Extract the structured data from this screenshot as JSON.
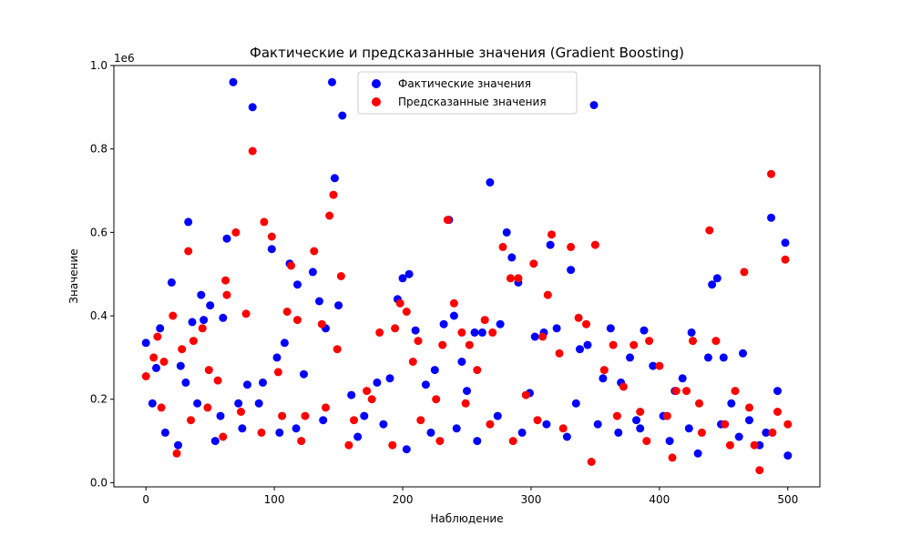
{
  "chart_data": {
    "type": "scatter",
    "title": "Фактические и предсказанные значения (Gradient Boosting)",
    "xlabel": "Наблюдение",
    "ylabel": "Значение",
    "y_offset_label": "1e6",
    "xlim": [
      -25,
      525
    ],
    "ylim": [
      -0.01,
      1.0
    ],
    "x_ticks": [
      0,
      100,
      200,
      300,
      400,
      500
    ],
    "y_ticks": [
      0.0,
      0.2,
      0.4,
      0.6,
      0.8,
      1.0
    ],
    "x_tick_labels": [
      "0",
      "100",
      "200",
      "300",
      "400",
      "500"
    ],
    "y_tick_labels": [
      "0.0",
      "0.2",
      "0.4",
      "0.6",
      "0.8",
      "1.0"
    ],
    "legend_position": "top-center",
    "series": [
      {
        "name": "Фактические значения",
        "color": "#0000ff",
        "points": [
          [
            0,
            0.335
          ],
          [
            5,
            0.19
          ],
          [
            8,
            0.275
          ],
          [
            11,
            0.37
          ],
          [
            20,
            0.48
          ],
          [
            27,
            0.28
          ],
          [
            31,
            0.24
          ],
          [
            33,
            0.625
          ],
          [
            36,
            0.385
          ],
          [
            43,
            0.45
          ],
          [
            45,
            0.39
          ],
          [
            50,
            0.425
          ],
          [
            54,
            0.1
          ],
          [
            60,
            0.395
          ],
          [
            63,
            0.585
          ],
          [
            68,
            0.96
          ],
          [
            72,
            0.19
          ],
          [
            79,
            0.235
          ],
          [
            83,
            0.9
          ],
          [
            91,
            0.24
          ],
          [
            98,
            0.56
          ],
          [
            102,
            0.3
          ],
          [
            108,
            0.335
          ],
          [
            112,
            0.525
          ],
          [
            118,
            0.475
          ],
          [
            123,
            0.26
          ],
          [
            130,
            0.505
          ],
          [
            135,
            0.435
          ],
          [
            140,
            0.37
          ],
          [
            145,
            0.96
          ],
          [
            147,
            0.73
          ],
          [
            150,
            0.425
          ],
          [
            153,
            0.88
          ],
          [
            160,
            0.21
          ],
          [
            170,
            0.16
          ],
          [
            180,
            0.24
          ],
          [
            190,
            0.25
          ],
          [
            196,
            0.44
          ],
          [
            200,
            0.49
          ],
          [
            205,
            0.5
          ],
          [
            210,
            0.365
          ],
          [
            218,
            0.235
          ],
          [
            225,
            0.27
          ],
          [
            232,
            0.38
          ],
          [
            236,
            0.63
          ],
          [
            240,
            0.4
          ],
          [
            246,
            0.29
          ],
          [
            250,
            0.22
          ],
          [
            256,
            0.36
          ],
          [
            262,
            0.36
          ],
          [
            268,
            0.72
          ],
          [
            276,
            0.38
          ],
          [
            281,
            0.6
          ],
          [
            285,
            0.54
          ],
          [
            290,
            0.48
          ],
          [
            299,
            0.215
          ],
          [
            303,
            0.35
          ],
          [
            310,
            0.36
          ],
          [
            315,
            0.57
          ],
          [
            320,
            0.37
          ],
          [
            328,
            0.11
          ],
          [
            331,
            0.51
          ],
          [
            338,
            0.32
          ],
          [
            344,
            0.33
          ],
          [
            349,
            0.905
          ],
          [
            356,
            0.25
          ],
          [
            362,
            0.37
          ],
          [
            370,
            0.24
          ],
          [
            377,
            0.3
          ],
          [
            382,
            0.15
          ],
          [
            388,
            0.365
          ],
          [
            395,
            0.28
          ],
          [
            403,
            0.16
          ],
          [
            412,
            0.22
          ],
          [
            418,
            0.25
          ],
          [
            425,
            0.36
          ],
          [
            430,
            0.07
          ],
          [
            438,
            0.3
          ],
          [
            441,
            0.475
          ],
          [
            445,
            0.49
          ],
          [
            450,
            0.3
          ],
          [
            456,
            0.19
          ],
          [
            465,
            0.31
          ],
          [
            470,
            0.15
          ],
          [
            478,
            0.09
          ],
          [
            487,
            0.635
          ],
          [
            492,
            0.22
          ],
          [
            498,
            0.575
          ],
          [
            15,
            0.12
          ],
          [
            25,
            0.09
          ],
          [
            40,
            0.19
          ],
          [
            58,
            0.16
          ],
          [
            75,
            0.13
          ],
          [
            88,
            0.19
          ],
          [
            104,
            0.12
          ],
          [
            117,
            0.13
          ],
          [
            138,
            0.15
          ],
          [
            165,
            0.11
          ],
          [
            185,
            0.14
          ],
          [
            203,
            0.08
          ],
          [
            222,
            0.12
          ],
          [
            242,
            0.13
          ],
          [
            258,
            0.1
          ],
          [
            274,
            0.16
          ],
          [
            293,
            0.12
          ],
          [
            312,
            0.14
          ],
          [
            335,
            0.19
          ],
          [
            352,
            0.14
          ],
          [
            368,
            0.12
          ],
          [
            385,
            0.13
          ],
          [
            408,
            0.1
          ],
          [
            423,
            0.13
          ],
          [
            448,
            0.14
          ],
          [
            462,
            0.11
          ],
          [
            483,
            0.12
          ],
          [
            500,
            0.065
          ]
        ]
      },
      {
        "name": "Предсказанные значения",
        "color": "#ff0000",
        "points": [
          [
            0,
            0.255
          ],
          [
            6,
            0.3
          ],
          [
            9,
            0.35
          ],
          [
            14,
            0.29
          ],
          [
            21,
            0.4
          ],
          [
            28,
            0.32
          ],
          [
            33,
            0.555
          ],
          [
            37,
            0.34
          ],
          [
            44,
            0.37
          ],
          [
            49,
            0.27
          ],
          [
            56,
            0.245
          ],
          [
            62,
            0.485
          ],
          [
            63,
            0.45
          ],
          [
            70,
            0.6
          ],
          [
            78,
            0.405
          ],
          [
            83,
            0.795
          ],
          [
            92,
            0.625
          ],
          [
            98,
            0.59
          ],
          [
            103,
            0.265
          ],
          [
            110,
            0.41
          ],
          [
            113,
            0.52
          ],
          [
            118,
            0.39
          ],
          [
            124,
            0.16
          ],
          [
            131,
            0.555
          ],
          [
            137,
            0.38
          ],
          [
            143,
            0.64
          ],
          [
            146,
            0.69
          ],
          [
            149,
            0.32
          ],
          [
            152,
            0.495
          ],
          [
            162,
            0.15
          ],
          [
            172,
            0.22
          ],
          [
            182,
            0.36
          ],
          [
            194,
            0.37
          ],
          [
            198,
            0.43
          ],
          [
            203,
            0.41
          ],
          [
            208,
            0.29
          ],
          [
            212,
            0.34
          ],
          [
            226,
            0.2
          ],
          [
            231,
            0.33
          ],
          [
            235,
            0.63
          ],
          [
            240,
            0.43
          ],
          [
            246,
            0.36
          ],
          [
            252,
            0.33
          ],
          [
            258,
            0.27
          ],
          [
            264,
            0.39
          ],
          [
            270,
            0.36
          ],
          [
            278,
            0.565
          ],
          [
            284,
            0.49
          ],
          [
            290,
            0.49
          ],
          [
            296,
            0.21
          ],
          [
            302,
            0.525
          ],
          [
            309,
            0.35
          ],
          [
            313,
            0.45
          ],
          [
            316,
            0.595
          ],
          [
            322,
            0.31
          ],
          [
            331,
            0.565
          ],
          [
            337,
            0.395
          ],
          [
            343,
            0.38
          ],
          [
            350,
            0.57
          ],
          [
            357,
            0.27
          ],
          [
            364,
            0.33
          ],
          [
            372,
            0.23
          ],
          [
            380,
            0.33
          ],
          [
            385,
            0.17
          ],
          [
            392,
            0.34
          ],
          [
            400,
            0.28
          ],
          [
            406,
            0.16
          ],
          [
            413,
            0.22
          ],
          [
            421,
            0.22
          ],
          [
            426,
            0.34
          ],
          [
            431,
            0.19
          ],
          [
            439,
            0.605
          ],
          [
            444,
            0.34
          ],
          [
            451,
            0.14
          ],
          [
            459,
            0.22
          ],
          [
            466,
            0.505
          ],
          [
            474,
            0.09
          ],
          [
            478,
            0.03
          ],
          [
            487,
            0.74
          ],
          [
            492,
            0.17
          ],
          [
            498,
            0.535
          ],
          [
            500,
            0.14
          ],
          [
            12,
            0.18
          ],
          [
            24,
            0.07
          ],
          [
            35,
            0.15
          ],
          [
            48,
            0.18
          ],
          [
            60,
            0.11
          ],
          [
            74,
            0.17
          ],
          [
            90,
            0.12
          ],
          [
            106,
            0.16
          ],
          [
            121,
            0.1
          ],
          [
            140,
            0.18
          ],
          [
            158,
            0.09
          ],
          [
            176,
            0.2
          ],
          [
            192,
            0.09
          ],
          [
            214,
            0.15
          ],
          [
            229,
            0.1
          ],
          [
            249,
            0.19
          ],
          [
            268,
            0.14
          ],
          [
            286,
            0.1
          ],
          [
            305,
            0.15
          ],
          [
            325,
            0.13
          ],
          [
            347,
            0.05
          ],
          [
            367,
            0.16
          ],
          [
            390,
            0.1
          ],
          [
            410,
            0.06
          ],
          [
            433,
            0.12
          ],
          [
            455,
            0.09
          ],
          [
            470,
            0.18
          ],
          [
            488,
            0.12
          ]
        ]
      }
    ]
  }
}
